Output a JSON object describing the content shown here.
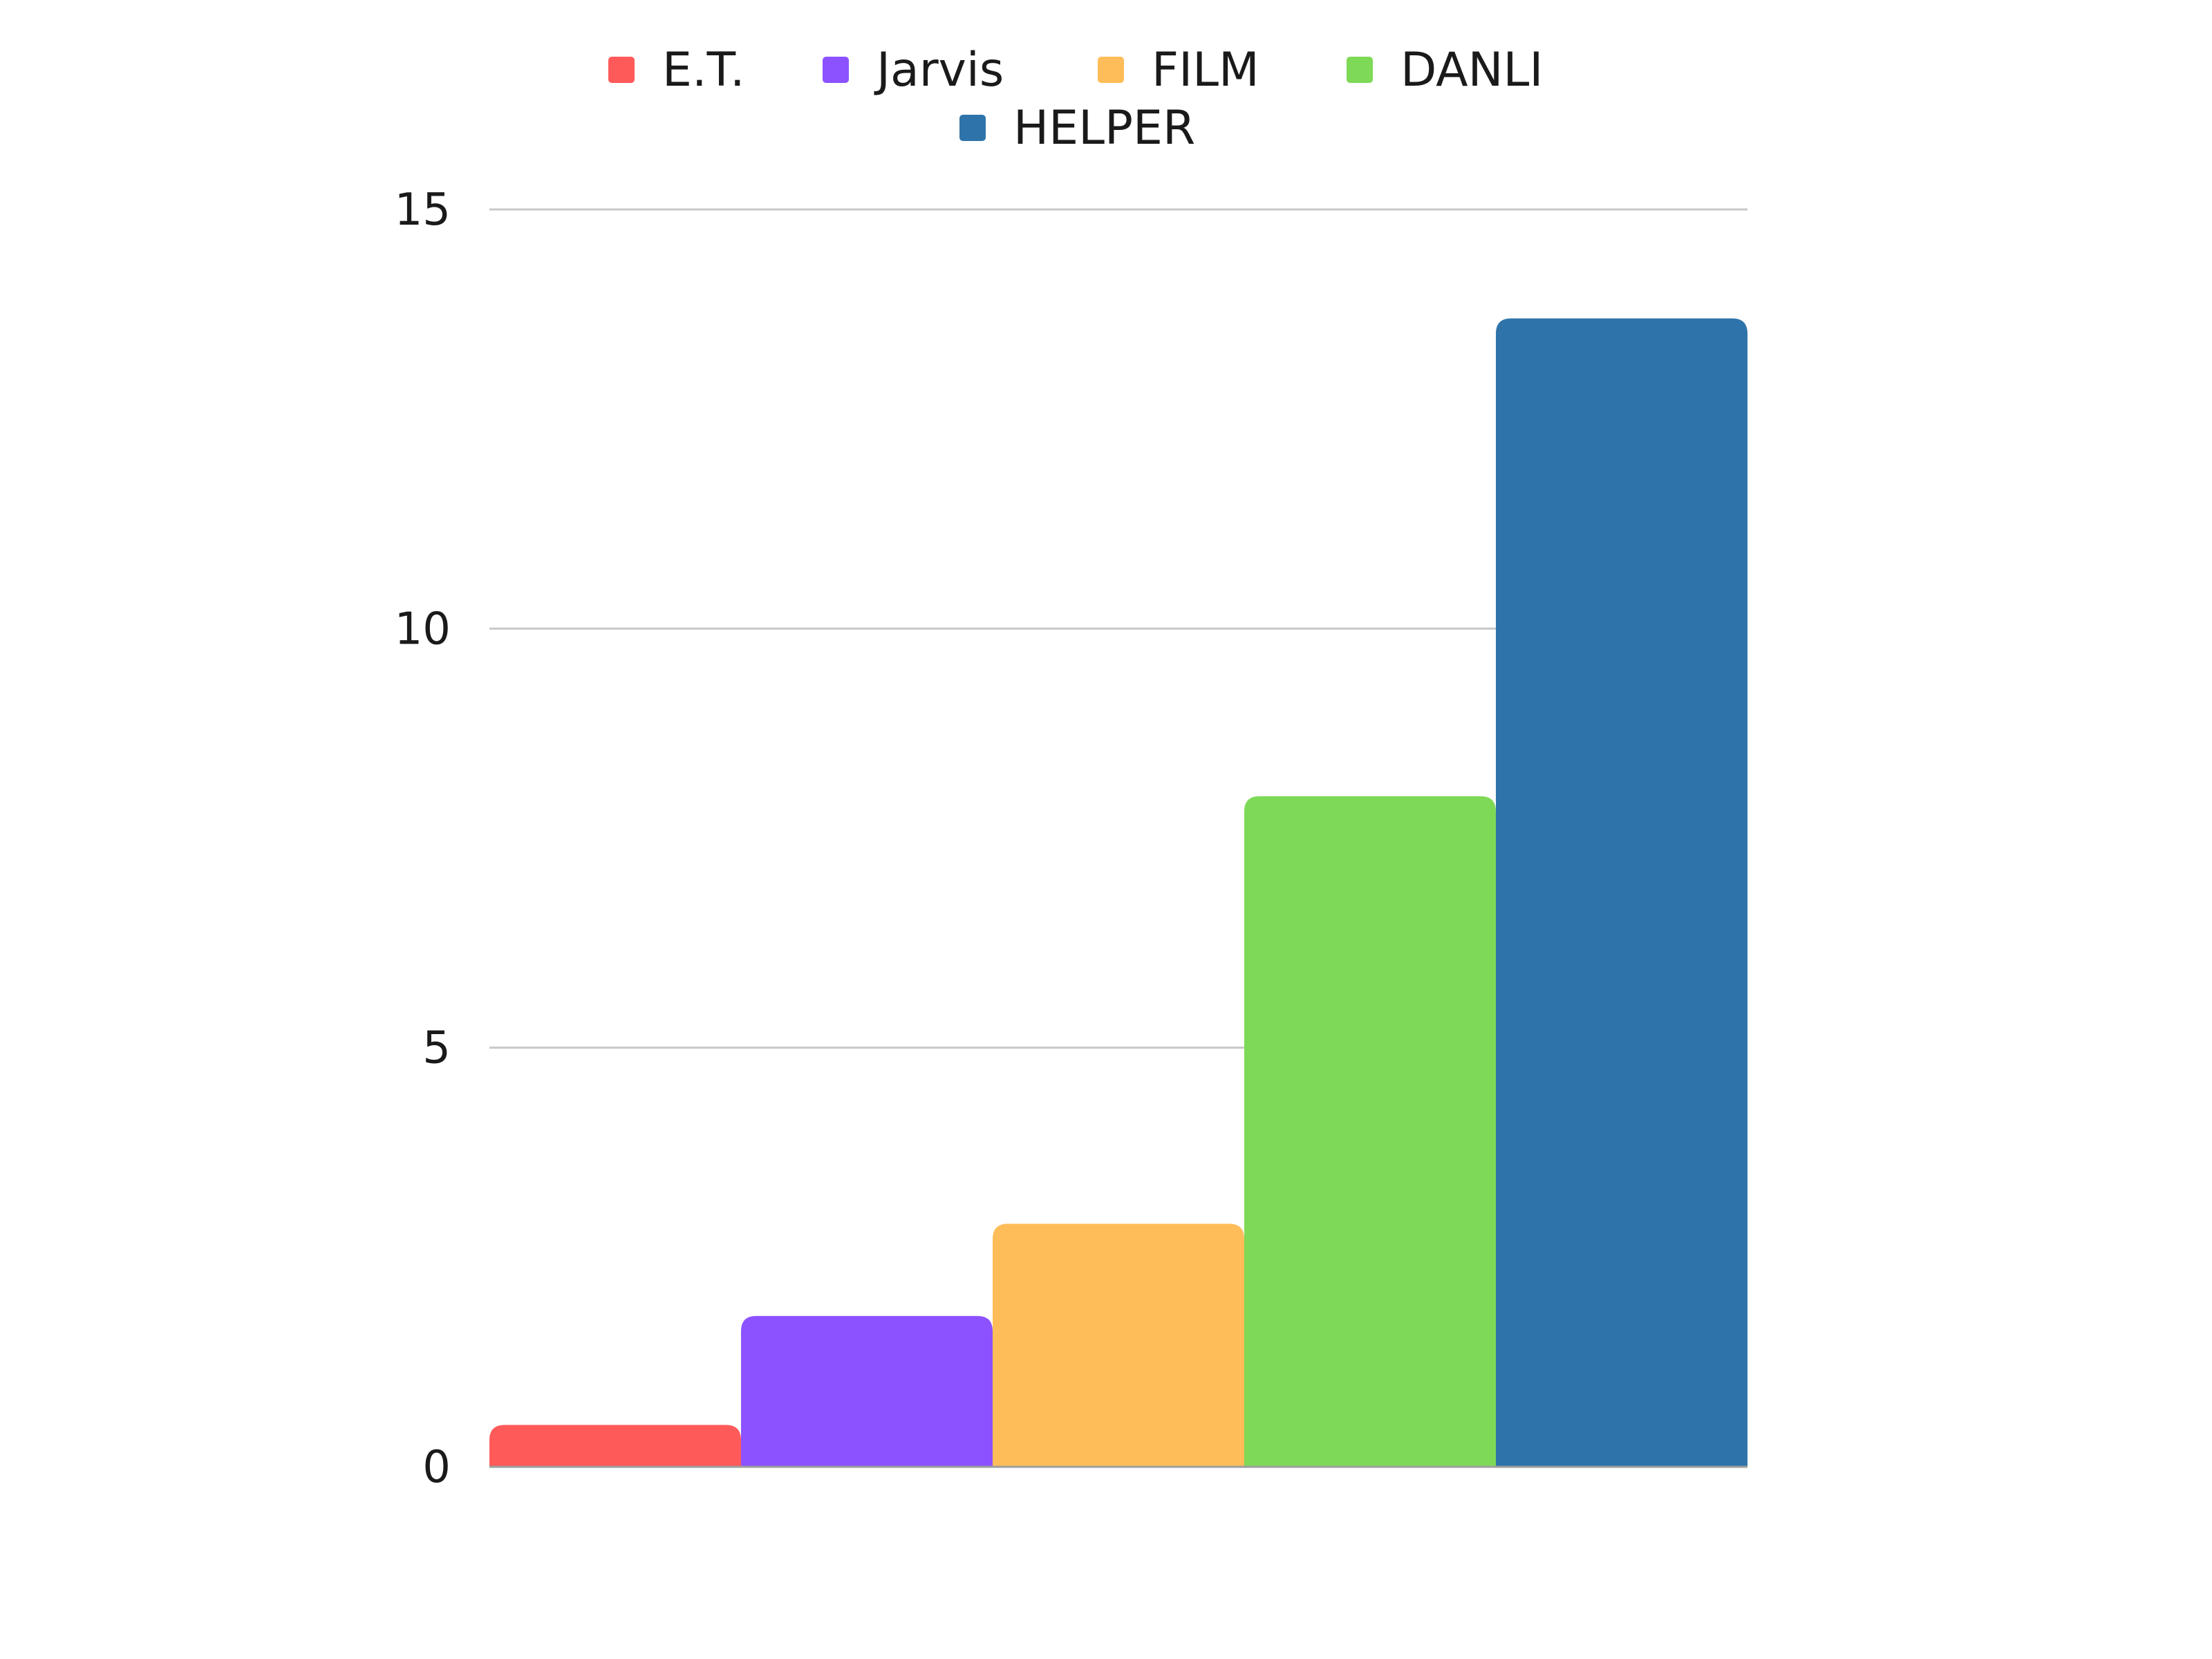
{
  "chart_data": {
    "type": "bar",
    "title": "",
    "xlabel": "",
    "ylabel": "",
    "ylim": [
      0,
      15
    ],
    "yticks": [
      "0",
      "5",
      "10",
      "15"
    ],
    "grid": true,
    "legend_position": "top-center",
    "series": [
      {
        "name": "E.T.",
        "value": 0.5,
        "color": "#ff5a5a"
      },
      {
        "name": "Jarvis",
        "value": 1.8,
        "color": "#8c52ff"
      },
      {
        "name": "FILM",
        "value": 2.9,
        "color": "#ffbd59"
      },
      {
        "name": "DANLI",
        "value": 8.0,
        "color": "#7ed957"
      },
      {
        "name": "HELPER",
        "value": 13.7,
        "color": "#2e74aa"
      }
    ]
  }
}
